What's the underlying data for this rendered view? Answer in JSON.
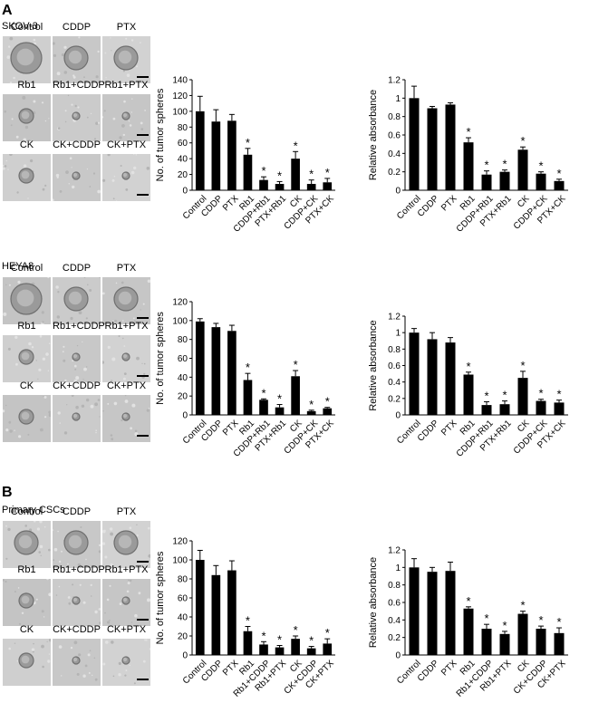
{
  "panel_labels": {
    "a": "A",
    "b": "B"
  },
  "groups": [
    {
      "cell_line": "SKOV-3",
      "image_labels": [
        "Control",
        "CDDP",
        "PTX",
        "Rb1",
        "Rb1+CDDP",
        "Rb1+PTX",
        "CK",
        "CK+CDDP",
        "CK+PTX"
      ],
      "sphere_sizes": [
        "large",
        "medium",
        "medium",
        "small",
        "tiny",
        "tiny",
        "small",
        "tiny",
        "tiny"
      ]
    },
    {
      "cell_line": "HEYA8",
      "image_labels": [
        "Control",
        "CDDP",
        "PTX",
        "Rb1",
        "Rb1+CDDP",
        "Rb1+PTX",
        "CK",
        "CK+CDDP",
        "CK+PTX"
      ],
      "sphere_sizes": [
        "large",
        "medium",
        "medium",
        "small",
        "tiny",
        "tiny",
        "small",
        "tiny",
        "tiny"
      ]
    },
    {
      "cell_line": "Primary CSCs",
      "image_labels": [
        "Control",
        "CDDP",
        "PTX",
        "Rb1",
        "Rb1+CDDP",
        "Rb1+PTX",
        "CK",
        "CK+CDDP",
        "CK+PTX"
      ],
      "sphere_sizes": [
        "medium",
        "medium",
        "medium",
        "small",
        "tiny",
        "tiny",
        "small",
        "tiny",
        "tiny"
      ]
    }
  ],
  "chart_data": [
    {
      "type": "bar",
      "title": "",
      "xlabel": "",
      "ylabel": "No. of tumor spheres",
      "ylim": [
        0,
        140
      ],
      "yticks": [
        "0",
        "20",
        "40",
        "60",
        "80",
        "100",
        "120",
        "140"
      ],
      "categories": [
        "Control",
        "CDDP",
        "PTX",
        "Rb1",
        "CDDP+Rb1",
        "PTX+Rb1",
        "CK",
        "CDDP+CK",
        "PTX+CK"
      ],
      "values": [
        100,
        87,
        88,
        45,
        13,
        8,
        40,
        8,
        10
      ],
      "errors": [
        19,
        15,
        8,
        8,
        4,
        3,
        9,
        5,
        5
      ],
      "significance": [
        "",
        "",
        "",
        "*",
        "*",
        "*",
        "*",
        "*",
        "*"
      ]
    },
    {
      "type": "bar",
      "title": "",
      "xlabel": "",
      "ylabel": "Relative absorbance",
      "ylim": [
        0,
        1.2
      ],
      "yticks": [
        "0",
        "0.2",
        "0.4",
        "0.6",
        "0.8",
        "1",
        "1.2"
      ],
      "categories": [
        "Control",
        "CDDP",
        "PTX",
        "Rb1",
        "CDDP+Rb1",
        "PTX+Rb1",
        "CK",
        "CDDP+CK",
        "PTX+CK"
      ],
      "values": [
        1.0,
        0.89,
        0.93,
        0.52,
        0.17,
        0.2,
        0.44,
        0.18,
        0.1
      ],
      "errors": [
        0.13,
        0.02,
        0.02,
        0.05,
        0.04,
        0.02,
        0.03,
        0.02,
        0.02
      ],
      "significance": [
        "",
        "",
        "",
        "*",
        "*",
        "*",
        "*",
        "*",
        "*"
      ]
    },
    {
      "type": "bar",
      "title": "",
      "xlabel": "",
      "ylabel": "No. of tumor spheres",
      "ylim": [
        0,
        120
      ],
      "yticks": [
        "0",
        "20",
        "40",
        "60",
        "80",
        "100",
        "120"
      ],
      "categories": [
        "Control",
        "CDDP",
        "PTX",
        "Rb1",
        "CDDP+Rb1",
        "PTX+Rb1",
        "CK",
        "CDDP+CK",
        "PTX+CK"
      ],
      "values": [
        99,
        93,
        89,
        37,
        16,
        8,
        41,
        4,
        7
      ],
      "errors": [
        3,
        4,
        6,
        7,
        1,
        3,
        6,
        1,
        1
      ],
      "significance": [
        "",
        "",
        "",
        "*",
        "*",
        "*",
        "*",
        "*",
        "*"
      ]
    },
    {
      "type": "bar",
      "title": "",
      "xlabel": "",
      "ylabel": "Relative absorbance",
      "ylim": [
        0,
        1.2
      ],
      "yticks": [
        "0",
        "0.2",
        "0.4",
        "0.6",
        "0.8",
        "1",
        "1.2"
      ],
      "categories": [
        "Control",
        "CDDP",
        "PTX",
        "Rb1",
        "CDDP+Rb1",
        "PTX+Rb1",
        "CK",
        "CDDP+CK",
        "PTX+CK"
      ],
      "values": [
        1.0,
        0.92,
        0.88,
        0.49,
        0.12,
        0.13,
        0.45,
        0.17,
        0.15
      ],
      "errors": [
        0.05,
        0.08,
        0.06,
        0.03,
        0.04,
        0.04,
        0.08,
        0.02,
        0.03
      ],
      "significance": [
        "",
        "",
        "",
        "*",
        "*",
        "*",
        "*",
        "*",
        "*"
      ]
    },
    {
      "type": "bar",
      "title": "",
      "xlabel": "",
      "ylabel": "No. of tumor spheres",
      "ylim": [
        0,
        120
      ],
      "yticks": [
        "0",
        "20",
        "40",
        "60",
        "80",
        "100",
        "120"
      ],
      "categories": [
        "Control",
        "CDDP",
        "PTX",
        "Rb1",
        "Rb1+CDDP",
        "Rb1+PTX",
        "CK",
        "CK+CDDP",
        "CK+PTX"
      ],
      "values": [
        100,
        84,
        89,
        25,
        11,
        8,
        17,
        7,
        12
      ],
      "errors": [
        10,
        10,
        10,
        5,
        3,
        2,
        3,
        2,
        5
      ],
      "significance": [
        "",
        "",
        "",
        "*",
        "*",
        "*",
        "*",
        "*",
        "*"
      ]
    },
    {
      "type": "bar",
      "title": "",
      "xlabel": "",
      "ylabel": "Relative absorbance",
      "ylim": [
        0,
        1.2
      ],
      "yticks": [
        "0",
        "0.2",
        "0.4",
        "0.6",
        "0.8",
        "1",
        "1.2"
      ],
      "categories": [
        "Control",
        "CDDP",
        "PTX",
        "Rb1",
        "Rb1+CDDP",
        "Rb1+PTX",
        "CK",
        "CK+CDDP",
        "CK+PTX"
      ],
      "values": [
        1.0,
        0.95,
        0.96,
        0.53,
        0.3,
        0.24,
        0.47,
        0.3,
        0.25
      ],
      "errors": [
        0.1,
        0.05,
        0.1,
        0.02,
        0.05,
        0.03,
        0.03,
        0.03,
        0.06
      ],
      "significance": [
        "",
        "",
        "",
        "*",
        "*",
        "*",
        "*",
        "*",
        "*"
      ]
    }
  ]
}
